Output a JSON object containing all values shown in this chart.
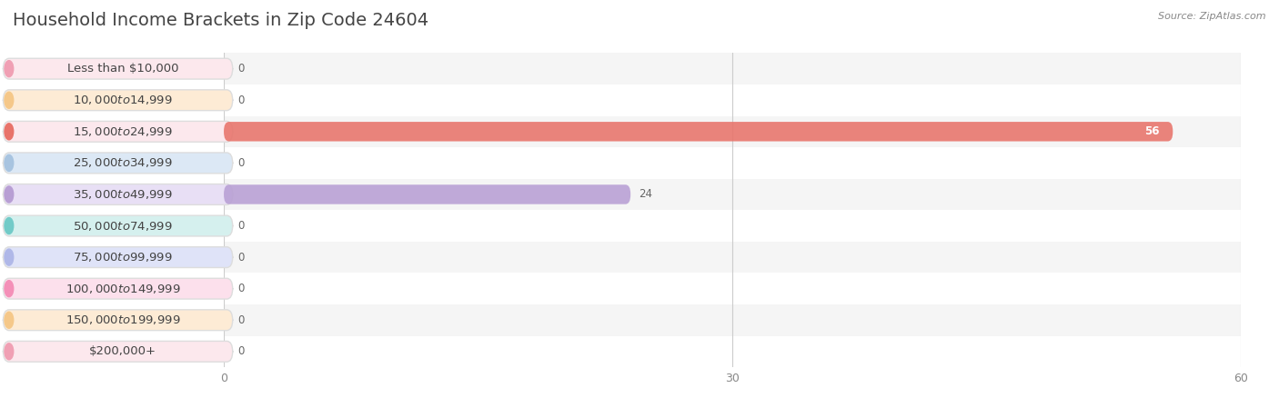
{
  "title": "Household Income Brackets in Zip Code 24604",
  "source": "Source: ZipAtlas.com",
  "categories": [
    "Less than $10,000",
    "$10,000 to $14,999",
    "$15,000 to $24,999",
    "$25,000 to $34,999",
    "$35,000 to $49,999",
    "$50,000 to $74,999",
    "$75,000 to $99,999",
    "$100,000 to $149,999",
    "$150,000 to $199,999",
    "$200,000+"
  ],
  "values": [
    0,
    0,
    56,
    0,
    24,
    0,
    0,
    0,
    0,
    0
  ],
  "bar_colors": [
    "#f0a0b4",
    "#f5c88a",
    "#e8736a",
    "#a8c4e0",
    "#b89fd4",
    "#72cbc8",
    "#b0b8e8",
    "#f490b8",
    "#f5c88a",
    "#f0a0b4"
  ],
  "bar_bg_colors": [
    "#fce8ed",
    "#fdebd5",
    "#fce8ed",
    "#dce8f5",
    "#e8dff5",
    "#d5f0ee",
    "#dfe3f8",
    "#fce0ec",
    "#fdebd5",
    "#fce8ed"
  ],
  "xlim": [
    0,
    60
  ],
  "xticks": [
    0,
    30,
    60
  ],
  "plot_bg_color": "#ffffff",
  "row_odd_color": "#f5f5f5",
  "row_even_color": "#ffffff",
  "grid_color": "#cccccc",
  "title_fontsize": 14,
  "label_fontsize": 9.5,
  "value_fontsize": 8.5,
  "tick_fontsize": 9,
  "source_fontsize": 8
}
